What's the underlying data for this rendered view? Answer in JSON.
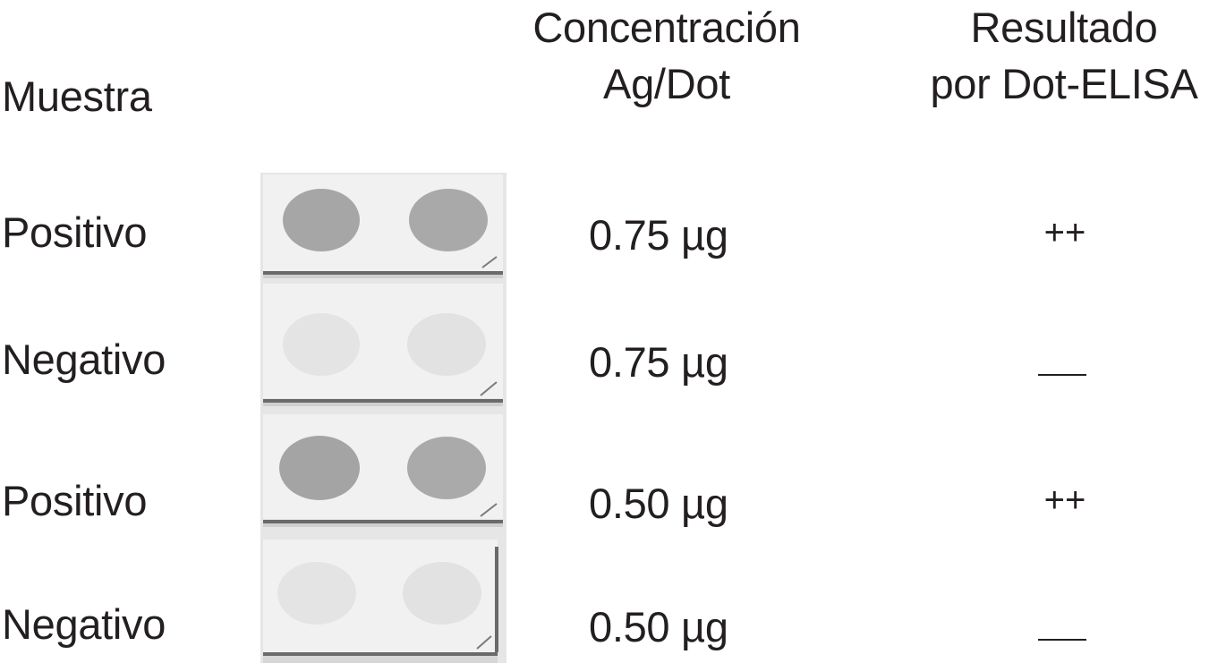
{
  "headers": {
    "sample": "Muestra",
    "concentration_line1": "Concentración",
    "concentration_line2": "Ag/Dot",
    "result_line1": "Resultado",
    "result_line2": "por Dot-ELISA"
  },
  "rows": [
    {
      "sample": "Positivo",
      "concentration": "0.75 µg",
      "result": "++",
      "dot_intensity": "strong"
    },
    {
      "sample": "Negativo",
      "concentration": "0.75 µg",
      "result": "—",
      "dot_intensity": "faint"
    },
    {
      "sample": "Positivo",
      "concentration": "0.50 µg",
      "result": "++",
      "dot_intensity": "strong"
    },
    {
      "sample": "Negativo",
      "concentration": "0.50 µg",
      "result": "—",
      "dot_intensity": "faint"
    }
  ],
  "colors": {
    "text": "#231f20",
    "strip": "#f2f2f2",
    "dot_strong": "#a6a6a6",
    "dot_faint": "#e3e3e3"
  }
}
